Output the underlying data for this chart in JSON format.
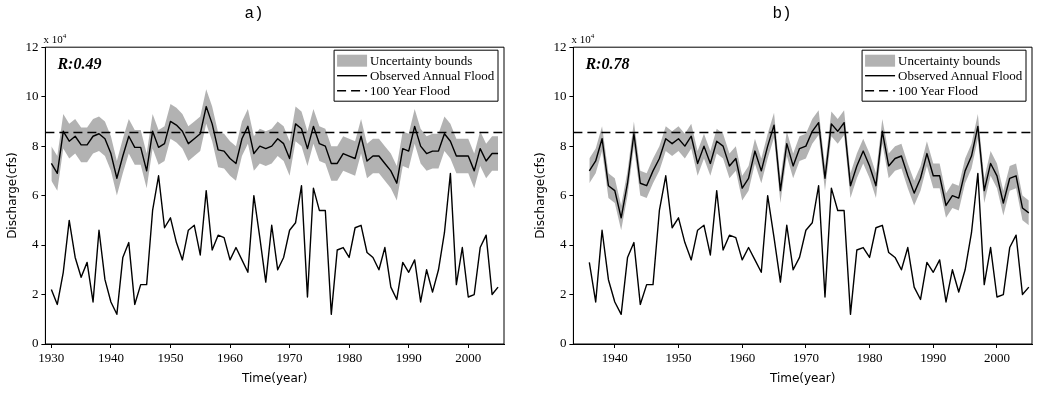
{
  "chart_data": [
    {
      "type": "line",
      "title": "a)",
      "xlabel": "Time(year)",
      "ylabel": "Discharge(cfs)",
      "annotations": [
        "R:0.49",
        "x 10$^{4}$"
      ],
      "x": [
        1930,
        1931,
        1932,
        1933,
        1934,
        1935,
        1936,
        1937,
        1938,
        1939,
        1940,
        1941,
        1942,
        1943,
        1944,
        1945,
        1946,
        1947,
        1948,
        1949,
        1950,
        1951,
        1952,
        1953,
        1954,
        1955,
        1956,
        1957,
        1958,
        1959,
        1960,
        1961,
        1962,
        1963,
        1964,
        1965,
        1966,
        1967,
        1968,
        1969,
        1970,
        1971,
        1972,
        1973,
        1974,
        1975,
        1976,
        1977,
        1978,
        1979,
        1980,
        1981,
        1982,
        1983,
        1984,
        1985,
        1986,
        1987,
        1988,
        1989,
        1990,
        1991,
        1992,
        1993,
        1994,
        1995,
        1996,
        1997,
        1998,
        1999,
        2000,
        2001,
        2002,
        2003,
        2004,
        2005
      ],
      "series": [
        {
          "name": "Uncertainty bounds",
          "color": "#000000",
          "values": [
            7.3,
            6.9,
            8.6,
            8.2,
            8.4,
            8.05,
            8.05,
            8.4,
            8.5,
            8.3,
            7.7,
            6.7,
            7.6,
            8.4,
            7.95,
            7.95,
            7.0,
            8.6,
            7.95,
            8.1,
            9.0,
            8.85,
            8.6,
            8.1,
            8.3,
            8.5,
            9.6,
            8.9,
            7.85,
            7.8,
            7.5,
            7.3,
            8.3,
            8.8,
            7.7,
            8.0,
            7.9,
            8.0,
            8.3,
            8.1,
            7.5,
            8.9,
            8.7,
            7.9,
            8.8,
            8.1,
            8.0,
            7.3,
            7.3,
            7.7,
            7.6,
            7.5,
            8.4,
            7.4,
            7.6,
            7.6,
            7.3,
            7.0,
            6.5,
            7.9,
            7.8,
            8.8,
            8.0,
            7.7,
            7.8,
            7.8,
            8.5,
            8.2,
            7.6,
            7.6,
            7.6,
            7.0,
            7.9,
            7.4,
            7.7,
            7.7
          ],
          "lower": [
            6.6,
            6.2,
            7.9,
            7.5,
            7.7,
            7.35,
            7.35,
            7.7,
            7.8,
            7.6,
            7.0,
            6.0,
            6.9,
            7.7,
            7.25,
            7.25,
            6.3,
            7.9,
            7.25,
            7.4,
            8.3,
            8.15,
            7.9,
            7.4,
            7.6,
            7.8,
            8.9,
            8.2,
            7.15,
            7.1,
            6.8,
            6.6,
            7.6,
            8.1,
            7.0,
            7.3,
            7.2,
            7.3,
            7.6,
            7.4,
            6.8,
            8.2,
            8.0,
            7.2,
            8.1,
            7.4,
            7.3,
            6.6,
            6.6,
            7.0,
            6.9,
            6.8,
            7.7,
            6.7,
            6.9,
            6.9,
            6.6,
            6.3,
            5.8,
            7.2,
            7.1,
            8.1,
            7.3,
            7.0,
            7.1,
            7.1,
            7.8,
            7.5,
            6.9,
            6.9,
            6.9,
            6.3,
            7.2,
            6.7,
            7.0,
            7.0
          ],
          "upper": [
            8.0,
            7.6,
            9.3,
            8.9,
            9.1,
            8.75,
            8.75,
            9.1,
            9.2,
            9.0,
            8.4,
            7.4,
            8.3,
            9.1,
            8.65,
            8.65,
            7.7,
            9.3,
            8.65,
            8.8,
            9.7,
            9.55,
            9.3,
            8.8,
            9.0,
            9.2,
            10.3,
            9.6,
            8.55,
            8.5,
            8.2,
            8.0,
            9.0,
            9.5,
            8.4,
            8.7,
            8.6,
            8.7,
            9.0,
            8.8,
            8.2,
            9.6,
            9.4,
            8.6,
            9.5,
            8.8,
            8.7,
            8.0,
            8.0,
            8.4,
            8.3,
            8.2,
            9.1,
            8.1,
            8.3,
            8.3,
            8.0,
            7.7,
            7.2,
            8.6,
            8.5,
            9.5,
            8.7,
            8.4,
            8.5,
            8.5,
            9.2,
            8.9,
            8.3,
            8.3,
            8.3,
            7.7,
            8.6,
            8.1,
            8.4,
            8.4
          ]
        },
        {
          "name": "Observed Annual Flood",
          "color": "#000000",
          "values": [
            2.2,
            1.6,
            2.9,
            5.0,
            3.5,
            2.7,
            3.3,
            1.7,
            4.6,
            2.6,
            1.7,
            1.2,
            3.5,
            4.1,
            1.6,
            2.4,
            2.4,
            5.4,
            6.8,
            4.7,
            5.1,
            4.1,
            3.4,
            4.6,
            4.8,
            3.6,
            6.2,
            3.8,
            4.4,
            4.3,
            3.4,
            3.9,
            3.4,
            2.9,
            6.0,
            4.3,
            2.5,
            4.8,
            3.0,
            3.5,
            4.6,
            4.9,
            6.4,
            1.9,
            6.3,
            5.4,
            5.4,
            1.2,
            3.8,
            3.9,
            3.5,
            4.7,
            4.8,
            3.7,
            3.5,
            3.0,
            3.9,
            2.3,
            1.8,
            3.3,
            2.9,
            3.4,
            1.7,
            3.0,
            2.1,
            3.0,
            4.5,
            6.9,
            2.4,
            3.9,
            1.9,
            2.0,
            3.9,
            4.4,
            2.0,
            2.3
          ]
        },
        {
          "name": "100 Year Flood",
          "color": "#000000",
          "line_style": "dashed",
          "x": [
            1929,
            2006
          ],
          "values": [
            8.55,
            8.55
          ]
        }
      ],
      "xlim": [
        1929,
        2006
      ],
      "xticks": [
        1930,
        1940,
        1950,
        1960,
        1970,
        1980,
        1990,
        2000
      ],
      "ylim": [
        0,
        12
      ],
      "yticks": [
        0,
        2,
        4,
        6,
        8,
        10,
        12
      ],
      "legend": "top right"
    },
    {
      "type": "line",
      "title": "b)",
      "xlabel": "Time(year)",
      "ylabel": "Discharge(cfs)",
      "annotations": [
        "R:0.78",
        "x 10$^{4}$"
      ],
      "x": [
        1936,
        1937,
        1938,
        1939,
        1940,
        1941,
        1942,
        1943,
        1944,
        1945,
        1946,
        1947,
        1948,
        1949,
        1950,
        1951,
        1952,
        1953,
        1954,
        1955,
        1956,
        1957,
        1958,
        1959,
        1960,
        1961,
        1962,
        1963,
        1964,
        1965,
        1966,
        1967,
        1968,
        1969,
        1970,
        1971,
        1972,
        1973,
        1974,
        1975,
        1976,
        1977,
        1978,
        1979,
        1980,
        1981,
        1982,
        1983,
        1984,
        1985,
        1986,
        1987,
        1988,
        1989,
        1990,
        1991,
        1992,
        1993,
        1994,
        1995,
        1996,
        1997,
        1998,
        1999,
        2000,
        2001,
        2002,
        2003,
        2004,
        2005
      ],
      "series": [
        {
          "name": "Uncertainty bounds",
          "color": "#000000",
          "values": [
            7.0,
            7.4,
            8.3,
            6.4,
            6.2,
            5.1,
            6.5,
            8.5,
            6.5,
            6.4,
            7.0,
            7.5,
            8.3,
            8.1,
            8.3,
            8.0,
            8.4,
            7.3,
            8.0,
            7.3,
            8.2,
            8.0,
            7.2,
            7.5,
            6.3,
            6.7,
            7.8,
            7.0,
            8.0,
            8.85,
            6.2,
            8.1,
            7.2,
            7.9,
            8.0,
            8.6,
            8.95,
            6.7,
            8.9,
            8.6,
            8.95,
            6.4,
            7.2,
            7.8,
            7.2,
            6.4,
            8.6,
            7.2,
            7.5,
            7.6,
            6.8,
            6.1,
            6.7,
            7.7,
            6.8,
            6.8,
            5.6,
            6.0,
            5.9,
            7.0,
            7.6,
            8.8,
            6.2,
            7.3,
            6.8,
            5.7,
            6.7,
            6.8,
            5.5,
            5.3
          ],
          "lower": [
            6.5,
            6.9,
            7.8,
            5.9,
            5.7,
            4.6,
            6.0,
            8.0,
            6.0,
            5.9,
            6.5,
            7.0,
            7.8,
            7.6,
            7.8,
            7.5,
            7.9,
            6.8,
            7.5,
            6.8,
            7.7,
            7.5,
            6.7,
            7.0,
            5.8,
            6.2,
            7.3,
            6.5,
            7.5,
            8.35,
            5.7,
            7.6,
            6.7,
            7.4,
            7.5,
            8.1,
            8.45,
            6.2,
            8.4,
            8.1,
            8.45,
            5.9,
            6.7,
            7.3,
            6.7,
            5.9,
            8.1,
            6.7,
            7.0,
            7.1,
            6.3,
            5.6,
            6.2,
            7.2,
            6.3,
            6.3,
            5.1,
            5.5,
            5.4,
            6.5,
            7.1,
            8.3,
            5.7,
            6.8,
            6.3,
            5.2,
            6.2,
            6.3,
            5.0,
            4.8
          ],
          "upper": [
            7.5,
            7.9,
            8.8,
            6.9,
            6.7,
            5.6,
            7.0,
            9.0,
            7.0,
            6.9,
            7.5,
            8.0,
            8.8,
            8.6,
            8.8,
            8.5,
            8.9,
            7.8,
            8.5,
            7.8,
            8.7,
            8.5,
            7.7,
            8.0,
            6.8,
            7.2,
            8.3,
            7.5,
            8.5,
            9.35,
            6.7,
            8.6,
            7.7,
            8.4,
            8.5,
            9.1,
            9.45,
            7.2,
            9.4,
            9.1,
            9.45,
            6.9,
            7.7,
            8.3,
            7.7,
            6.9,
            9.1,
            7.7,
            8.0,
            8.1,
            7.3,
            6.6,
            7.2,
            8.2,
            7.3,
            7.3,
            6.1,
            6.5,
            6.4,
            7.5,
            8.1,
            9.3,
            6.7,
            7.8,
            7.3,
            6.2,
            7.2,
            7.3,
            6.0,
            5.8
          ]
        },
        {
          "name": "Observed Annual Flood",
          "color": "#000000",
          "values": [
            3.3,
            1.7,
            4.6,
            2.6,
            1.7,
            1.2,
            3.5,
            4.1,
            1.6,
            2.4,
            2.4,
            5.4,
            6.8,
            4.7,
            5.1,
            4.1,
            3.4,
            4.6,
            4.8,
            3.6,
            6.2,
            3.8,
            4.4,
            4.3,
            3.4,
            3.9,
            3.4,
            2.9,
            6.0,
            4.3,
            2.5,
            4.8,
            3.0,
            3.5,
            4.6,
            4.9,
            6.4,
            1.9,
            6.3,
            5.4,
            5.4,
            1.2,
            3.8,
            3.9,
            3.5,
            4.7,
            4.8,
            3.7,
            3.5,
            3.0,
            3.9,
            2.3,
            1.8,
            3.3,
            2.9,
            3.4,
            1.7,
            3.0,
            2.1,
            3.0,
            4.5,
            6.9,
            2.4,
            3.9,
            1.9,
            2.0,
            3.9,
            4.4,
            2.0,
            2.3
          ]
        },
        {
          "name": "100 Year Flood",
          "color": "#000000",
          "line_style": "dashed",
          "x": [
            1933.5,
            2005.5
          ],
          "values": [
            8.55,
            8.55
          ]
        }
      ],
      "xlim": [
        1933.5,
        2005.5
      ],
      "xticks": [
        1940,
        1950,
        1960,
        1970,
        1980,
        1990,
        2000
      ],
      "ylim": [
        0,
        12
      ],
      "yticks": [
        0,
        2,
        4,
        6,
        8,
        10,
        12
      ],
      "legend": "top right"
    }
  ]
}
